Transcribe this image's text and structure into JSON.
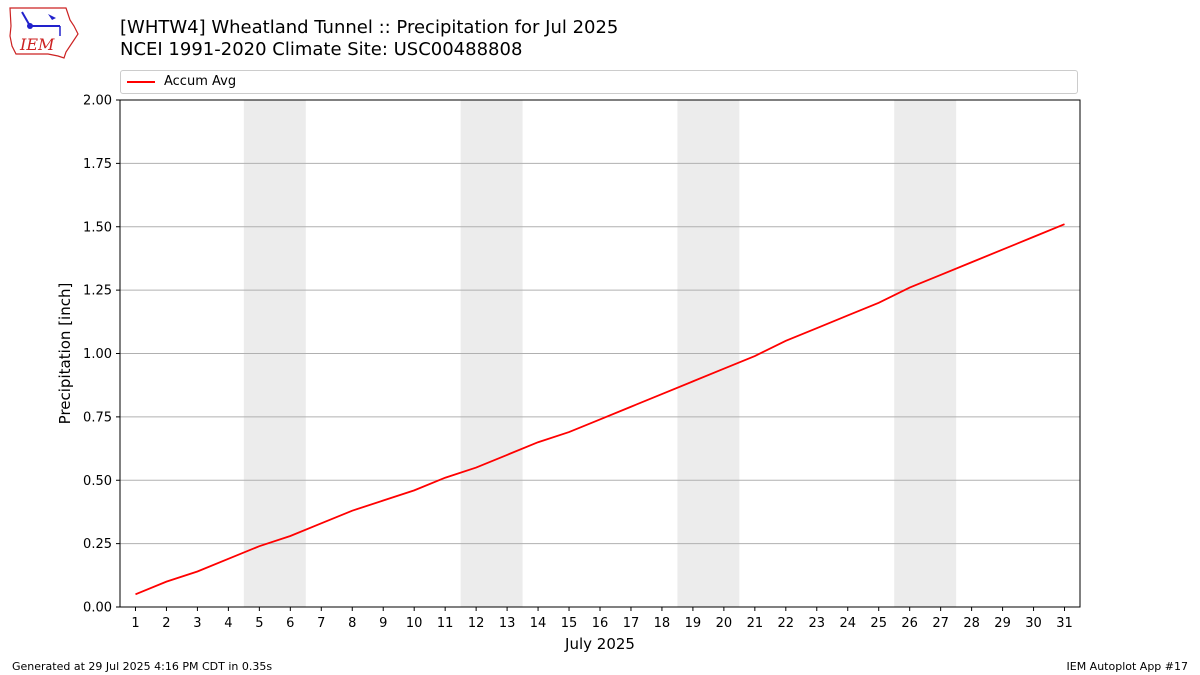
{
  "title_line1": "[WHTW4] Wheatland Tunnel :: Precipitation for Jul 2025",
  "title_line2": "NCEI 1991-2020 Climate Site: USC00488808",
  "logo_text": "IEM",
  "footer_left": "Generated at 29 Jul 2025 4:16 PM CDT in 0.35s",
  "footer_right": "IEM Autoplot App #17",
  "colors": {
    "line": "#ff0000",
    "weekend_band": "#ececec",
    "grid": "#b0b0b0"
  },
  "chart_data": {
    "type": "line",
    "xlabel": "July 2025",
    "ylabel": "Precipitation [inch]",
    "ylim": [
      0,
      2.0
    ],
    "yticks": [
      "0.00",
      "0.25",
      "0.50",
      "0.75",
      "1.00",
      "1.25",
      "1.50",
      "1.75",
      "2.00"
    ],
    "x": [
      1,
      2,
      3,
      4,
      5,
      6,
      7,
      8,
      9,
      10,
      11,
      12,
      13,
      14,
      15,
      16,
      17,
      18,
      19,
      20,
      21,
      22,
      23,
      24,
      25,
      26,
      27,
      28,
      29,
      30,
      31
    ],
    "weekend_bands": [
      [
        5,
        6
      ],
      [
        12,
        13
      ],
      [
        19,
        20
      ],
      [
        26,
        27
      ]
    ],
    "grid": "horizontal",
    "legend_position": "top",
    "series": [
      {
        "name": "Accum Avg",
        "values": [
          0.05,
          0.1,
          0.14,
          0.19,
          0.24,
          0.28,
          0.33,
          0.38,
          0.42,
          0.46,
          0.51,
          0.55,
          0.6,
          0.65,
          0.69,
          0.74,
          0.79,
          0.84,
          0.89,
          0.94,
          0.99,
          1.05,
          1.1,
          1.15,
          1.2,
          1.26,
          1.31,
          1.36,
          1.41,
          1.46,
          1.51
        ]
      }
    ]
  }
}
